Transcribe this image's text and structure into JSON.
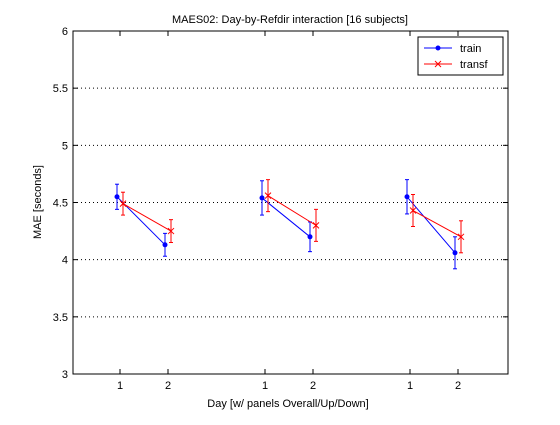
{
  "chart_data": {
    "type": "line",
    "title": "MAES02: Day-by-Refdir interaction  [16 subjects]",
    "xlabel": "Day  [w/ panels Overall/Up/Down]",
    "ylabel": "MAE [seconds]",
    "ylim": [
      3,
      6
    ],
    "yticks": [
      3,
      3.5,
      4,
      4.5,
      5,
      5.5,
      6
    ],
    "ytick_labels": [
      "3",
      "3.5",
      "4",
      "4.5",
      "5",
      "5.5",
      "6"
    ],
    "grid": "horizontal dotted",
    "legend_position": "top-right",
    "panels": [
      {
        "xtick_labels": [
          "1",
          "2"
        ]
      },
      {
        "xtick_labels": [
          "1",
          "2"
        ]
      },
      {
        "xtick_labels": [
          "1",
          "2"
        ]
      }
    ],
    "series": [
      {
        "name": "train",
        "color": "#0000ff",
        "marker": "dot",
        "panels": [
          {
            "values": [
              4.55,
              4.13
            ],
            "errors": [
              0.11,
              0.1
            ]
          },
          {
            "values": [
              4.54,
              4.2
            ],
            "errors": [
              0.15,
              0.13
            ]
          },
          {
            "values": [
              4.55,
              4.06
            ],
            "errors": [
              0.15,
              0.14
            ]
          }
        ]
      },
      {
        "name": "transf",
        "color": "#ff0000",
        "marker": "x",
        "panels": [
          {
            "values": [
              4.49,
              4.25
            ],
            "errors": [
              0.1,
              0.1
            ]
          },
          {
            "values": [
              4.56,
              4.3
            ],
            "errors": [
              0.14,
              0.14
            ]
          },
          {
            "values": [
              4.43,
              4.2
            ],
            "errors": [
              0.14,
              0.14
            ]
          }
        ]
      }
    ]
  }
}
